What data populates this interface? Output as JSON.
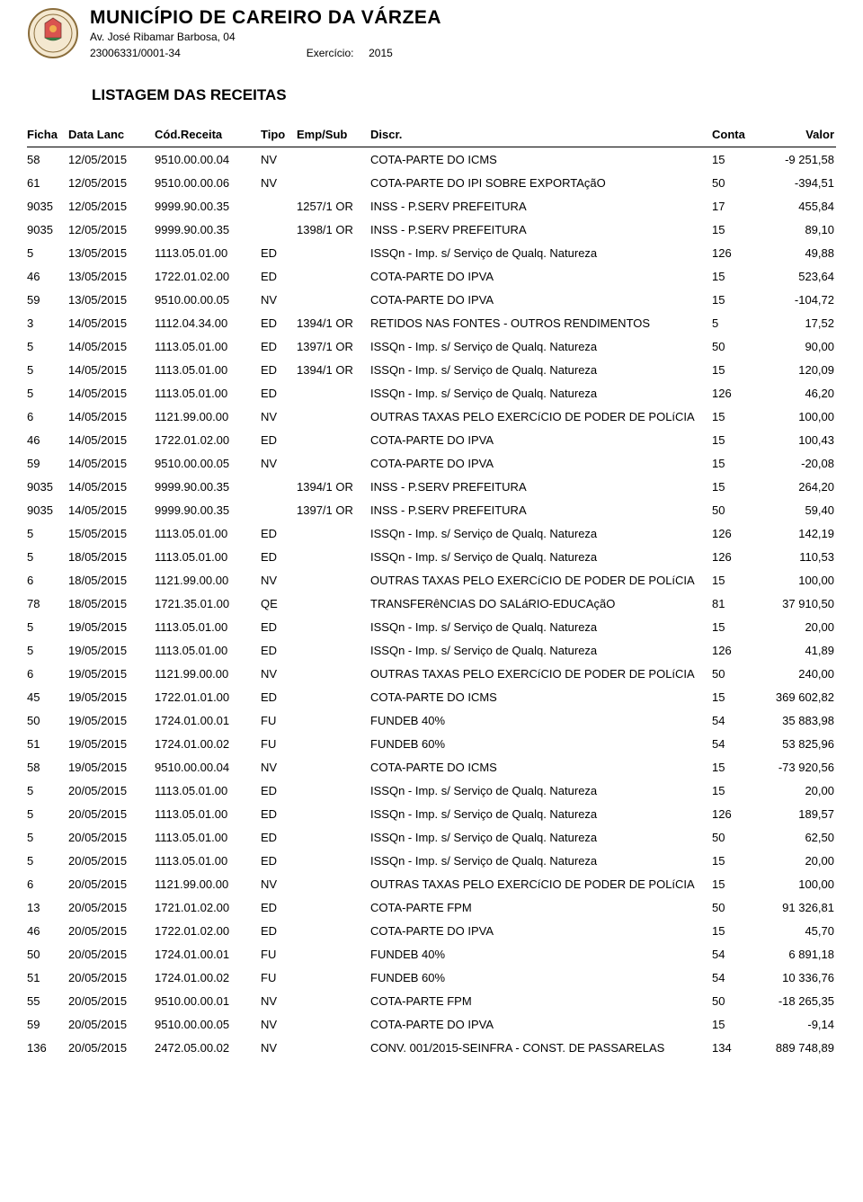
{
  "header": {
    "municipio": "MUNICÍPIO DE CAREIRO DA VÁRZEA",
    "endereco": "Av. José Ribamar Barbosa, 04",
    "cnpj": "23006331/0001-34",
    "exercicio_label": "Exercício:",
    "exercicio_valor": "2015"
  },
  "title": "LISTAGEM DAS RECEITAS",
  "columns": {
    "ficha": "Ficha",
    "data": "Data Lanc",
    "cod": "Cód.Receita",
    "tipo": "Tipo",
    "emp": "Emp/Sub",
    "discr": "Discr.",
    "conta": "Conta",
    "valor": "Valor"
  },
  "rows": [
    {
      "ficha": "58",
      "data": "12/05/2015",
      "cod": "9510.00.00.04",
      "tipo": "NV",
      "emp": "",
      "discr": "COTA-PARTE DO ICMS",
      "conta": "15",
      "valor": "-9 251,58"
    },
    {
      "ficha": "61",
      "data": "12/05/2015",
      "cod": "9510.00.00.06",
      "tipo": "NV",
      "emp": "",
      "discr": "COTA-PARTE DO IPI SOBRE EXPORTAçãO",
      "conta": "50",
      "valor": "-394,51"
    },
    {
      "ficha": "9035",
      "data": "12/05/2015",
      "cod": "9999.90.00.35",
      "tipo": "",
      "emp": "1257/1 OR",
      "discr": "INSS - P.SERV PREFEITURA",
      "conta": "17",
      "valor": "455,84"
    },
    {
      "ficha": "9035",
      "data": "12/05/2015",
      "cod": "9999.90.00.35",
      "tipo": "",
      "emp": "1398/1 OR",
      "discr": "INSS - P.SERV PREFEITURA",
      "conta": "15",
      "valor": "89,10"
    },
    {
      "ficha": "5",
      "data": "13/05/2015",
      "cod": "1113.05.01.00",
      "tipo": "ED",
      "emp": "",
      "discr": "ISSQn - Imp. s/ Serviço de Qualq. Natureza",
      "conta": "126",
      "valor": "49,88"
    },
    {
      "ficha": "46",
      "data": "13/05/2015",
      "cod": "1722.01.02.00",
      "tipo": "ED",
      "emp": "",
      "discr": "COTA-PARTE DO IPVA",
      "conta": "15",
      "valor": "523,64"
    },
    {
      "ficha": "59",
      "data": "13/05/2015",
      "cod": "9510.00.00.05",
      "tipo": "NV",
      "emp": "",
      "discr": "COTA-PARTE DO IPVA",
      "conta": "15",
      "valor": "-104,72"
    },
    {
      "ficha": "3",
      "data": "14/05/2015",
      "cod": "1112.04.34.00",
      "tipo": "ED",
      "emp": "1394/1 OR",
      "discr": "RETIDOS NAS FONTES - OUTROS RENDIMENTOS",
      "conta": "5",
      "valor": "17,52"
    },
    {
      "ficha": "5",
      "data": "14/05/2015",
      "cod": "1113.05.01.00",
      "tipo": "ED",
      "emp": "1397/1 OR",
      "discr": "ISSQn - Imp. s/ Serviço de Qualq. Natureza",
      "conta": "50",
      "valor": "90,00"
    },
    {
      "ficha": "5",
      "data": "14/05/2015",
      "cod": "1113.05.01.00",
      "tipo": "ED",
      "emp": "1394/1 OR",
      "discr": "ISSQn - Imp. s/ Serviço de Qualq. Natureza",
      "conta": "15",
      "valor": "120,09"
    },
    {
      "ficha": "5",
      "data": "14/05/2015",
      "cod": "1113.05.01.00",
      "tipo": "ED",
      "emp": "",
      "discr": "ISSQn - Imp. s/ Serviço de Qualq. Natureza",
      "conta": "126",
      "valor": "46,20"
    },
    {
      "ficha": "6",
      "data": "14/05/2015",
      "cod": "1121.99.00.00",
      "tipo": "NV",
      "emp": "",
      "discr": "OUTRAS TAXAS PELO EXERCíCIO DE PODER DE POLíCIA",
      "conta": "15",
      "valor": "100,00"
    },
    {
      "ficha": "46",
      "data": "14/05/2015",
      "cod": "1722.01.02.00",
      "tipo": "ED",
      "emp": "",
      "discr": "COTA-PARTE DO IPVA",
      "conta": "15",
      "valor": "100,43"
    },
    {
      "ficha": "59",
      "data": "14/05/2015",
      "cod": "9510.00.00.05",
      "tipo": "NV",
      "emp": "",
      "discr": "COTA-PARTE DO IPVA",
      "conta": "15",
      "valor": "-20,08"
    },
    {
      "ficha": "9035",
      "data": "14/05/2015",
      "cod": "9999.90.00.35",
      "tipo": "",
      "emp": "1394/1 OR",
      "discr": "INSS - P.SERV PREFEITURA",
      "conta": "15",
      "valor": "264,20"
    },
    {
      "ficha": "9035",
      "data": "14/05/2015",
      "cod": "9999.90.00.35",
      "tipo": "",
      "emp": "1397/1 OR",
      "discr": "INSS - P.SERV PREFEITURA",
      "conta": "50",
      "valor": "59,40"
    },
    {
      "ficha": "5",
      "data": "15/05/2015",
      "cod": "1113.05.01.00",
      "tipo": "ED",
      "emp": "",
      "discr": "ISSQn - Imp. s/ Serviço de Qualq. Natureza",
      "conta": "126",
      "valor": "142,19"
    },
    {
      "ficha": "5",
      "data": "18/05/2015",
      "cod": "1113.05.01.00",
      "tipo": "ED",
      "emp": "",
      "discr": "ISSQn - Imp. s/ Serviço de Qualq. Natureza",
      "conta": "126",
      "valor": "110,53"
    },
    {
      "ficha": "6",
      "data": "18/05/2015",
      "cod": "1121.99.00.00",
      "tipo": "NV",
      "emp": "",
      "discr": "OUTRAS TAXAS PELO EXERCíCIO DE PODER DE POLíCIA",
      "conta": "15",
      "valor": "100,00"
    },
    {
      "ficha": "78",
      "data": "18/05/2015",
      "cod": "1721.35.01.00",
      "tipo": "QE",
      "emp": "",
      "discr": "TRANSFERêNCIAS DO SALáRIO-EDUCAçãO",
      "conta": "81",
      "valor": "37 910,50"
    },
    {
      "ficha": "5",
      "data": "19/05/2015",
      "cod": "1113.05.01.00",
      "tipo": "ED",
      "emp": "",
      "discr": "ISSQn - Imp. s/ Serviço de Qualq. Natureza",
      "conta": "15",
      "valor": "20,00"
    },
    {
      "ficha": "5",
      "data": "19/05/2015",
      "cod": "1113.05.01.00",
      "tipo": "ED",
      "emp": "",
      "discr": "ISSQn - Imp. s/ Serviço de Qualq. Natureza",
      "conta": "126",
      "valor": "41,89"
    },
    {
      "ficha": "6",
      "data": "19/05/2015",
      "cod": "1121.99.00.00",
      "tipo": "NV",
      "emp": "",
      "discr": "OUTRAS TAXAS PELO EXERCíCIO DE PODER DE POLíCIA",
      "conta": "50",
      "valor": "240,00"
    },
    {
      "ficha": "45",
      "data": "19/05/2015",
      "cod": "1722.01.01.00",
      "tipo": "ED",
      "emp": "",
      "discr": "COTA-PARTE DO ICMS",
      "conta": "15",
      "valor": "369 602,82"
    },
    {
      "ficha": "50",
      "data": "19/05/2015",
      "cod": "1724.01.00.01",
      "tipo": "FU",
      "emp": "",
      "discr": "FUNDEB 40%",
      "conta": "54",
      "valor": "35 883,98"
    },
    {
      "ficha": "51",
      "data": "19/05/2015",
      "cod": "1724.01.00.02",
      "tipo": "FU",
      "emp": "",
      "discr": "FUNDEB 60%",
      "conta": "54",
      "valor": "53 825,96"
    },
    {
      "ficha": "58",
      "data": "19/05/2015",
      "cod": "9510.00.00.04",
      "tipo": "NV",
      "emp": "",
      "discr": "COTA-PARTE DO ICMS",
      "conta": "15",
      "valor": "-73 920,56"
    },
    {
      "ficha": "5",
      "data": "20/05/2015",
      "cod": "1113.05.01.00",
      "tipo": "ED",
      "emp": "",
      "discr": "ISSQn - Imp. s/ Serviço de Qualq. Natureza",
      "conta": "15",
      "valor": "20,00"
    },
    {
      "ficha": "5",
      "data": "20/05/2015",
      "cod": "1113.05.01.00",
      "tipo": "ED",
      "emp": "",
      "discr": "ISSQn - Imp. s/ Serviço de Qualq. Natureza",
      "conta": "126",
      "valor": "189,57"
    },
    {
      "ficha": "5",
      "data": "20/05/2015",
      "cod": "1113.05.01.00",
      "tipo": "ED",
      "emp": "",
      "discr": "ISSQn - Imp. s/ Serviço de Qualq. Natureza",
      "conta": "50",
      "valor": "62,50"
    },
    {
      "ficha": "5",
      "data": "20/05/2015",
      "cod": "1113.05.01.00",
      "tipo": "ED",
      "emp": "",
      "discr": "ISSQn - Imp. s/ Serviço de Qualq. Natureza",
      "conta": "15",
      "valor": "20,00"
    },
    {
      "ficha": "6",
      "data": "20/05/2015",
      "cod": "1121.99.00.00",
      "tipo": "NV",
      "emp": "",
      "discr": "OUTRAS TAXAS PELO EXERCíCIO DE PODER DE POLíCIA",
      "conta": "15",
      "valor": "100,00"
    },
    {
      "ficha": "13",
      "data": "20/05/2015",
      "cod": "1721.01.02.00",
      "tipo": "ED",
      "emp": "",
      "discr": "COTA-PARTE FPM",
      "conta": "50",
      "valor": "91 326,81"
    },
    {
      "ficha": "46",
      "data": "20/05/2015",
      "cod": "1722.01.02.00",
      "tipo": "ED",
      "emp": "",
      "discr": "COTA-PARTE DO IPVA",
      "conta": "15",
      "valor": "45,70"
    },
    {
      "ficha": "50",
      "data": "20/05/2015",
      "cod": "1724.01.00.01",
      "tipo": "FU",
      "emp": "",
      "discr": "FUNDEB 40%",
      "conta": "54",
      "valor": "6 891,18"
    },
    {
      "ficha": "51",
      "data": "20/05/2015",
      "cod": "1724.01.00.02",
      "tipo": "FU",
      "emp": "",
      "discr": "FUNDEB 60%",
      "conta": "54",
      "valor": "10 336,76"
    },
    {
      "ficha": "55",
      "data": "20/05/2015",
      "cod": "9510.00.00.01",
      "tipo": "NV",
      "emp": "",
      "discr": "COTA-PARTE FPM",
      "conta": "50",
      "valor": "-18 265,35"
    },
    {
      "ficha": "59",
      "data": "20/05/2015",
      "cod": "9510.00.00.05",
      "tipo": "NV",
      "emp": "",
      "discr": "COTA-PARTE DO IPVA",
      "conta": "15",
      "valor": "-9,14"
    },
    {
      "ficha": "136",
      "data": "20/05/2015",
      "cod": "2472.05.00.02",
      "tipo": "NV",
      "emp": "",
      "discr": "CONV. 001/2015-SEINFRA - CONST. DE PASSARELAS",
      "conta": "134",
      "valor": "889 748,89"
    }
  ]
}
